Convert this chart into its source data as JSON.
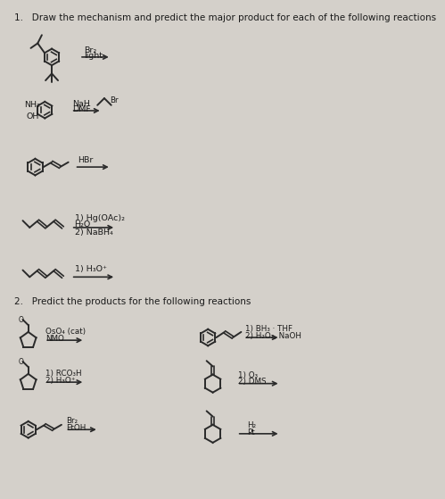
{
  "bg_color": "#d4d0ca",
  "text_color": "#1a1a1a",
  "title1": "1.   Draw the mechanism and predict the major product for each of the following reactions",
  "title2": "2.   Predict the products for the following reactions",
  "s1r0_line1": "Br₂",
  "s1r0_line2": "light",
  "s1r1_line1": "NaH",
  "s1r1_line2": "DMF",
  "s1r1_above": "Br",
  "s1r2_line1": "HBr",
  "s1r3_line1": "1) Hg(OAc)₂",
  "s1r3_line2": "H₂O",
  "s1r3_line3": "2) NaBH₄",
  "s1r4_line1": "1) H₃O⁺",
  "s2l0_line1": "OsO₄ (cat)",
  "s2l0_line2": "NMO",
  "s2l1_line1": "1) RCO₃H",
  "s2l1_line2": "2) H₃O⁺",
  "s2l2_line1": "Br₂",
  "s2l2_line2": "EtOH",
  "s2r0_line1": "1) BH₃ · THF",
  "s2r0_line2": "2) H₂O₂, NaOH",
  "s2r1_line1": "1) O₃",
  "s2r1_line2": "2) DMS",
  "s2r2_line1": "H₂",
  "s2r2_line2": "Pt",
  "mc": "#2a2a2a",
  "ac": "#2a2a2a",
  "fs_title": 7.5,
  "fs_reagent": 6.8,
  "fs_label": 7.0
}
